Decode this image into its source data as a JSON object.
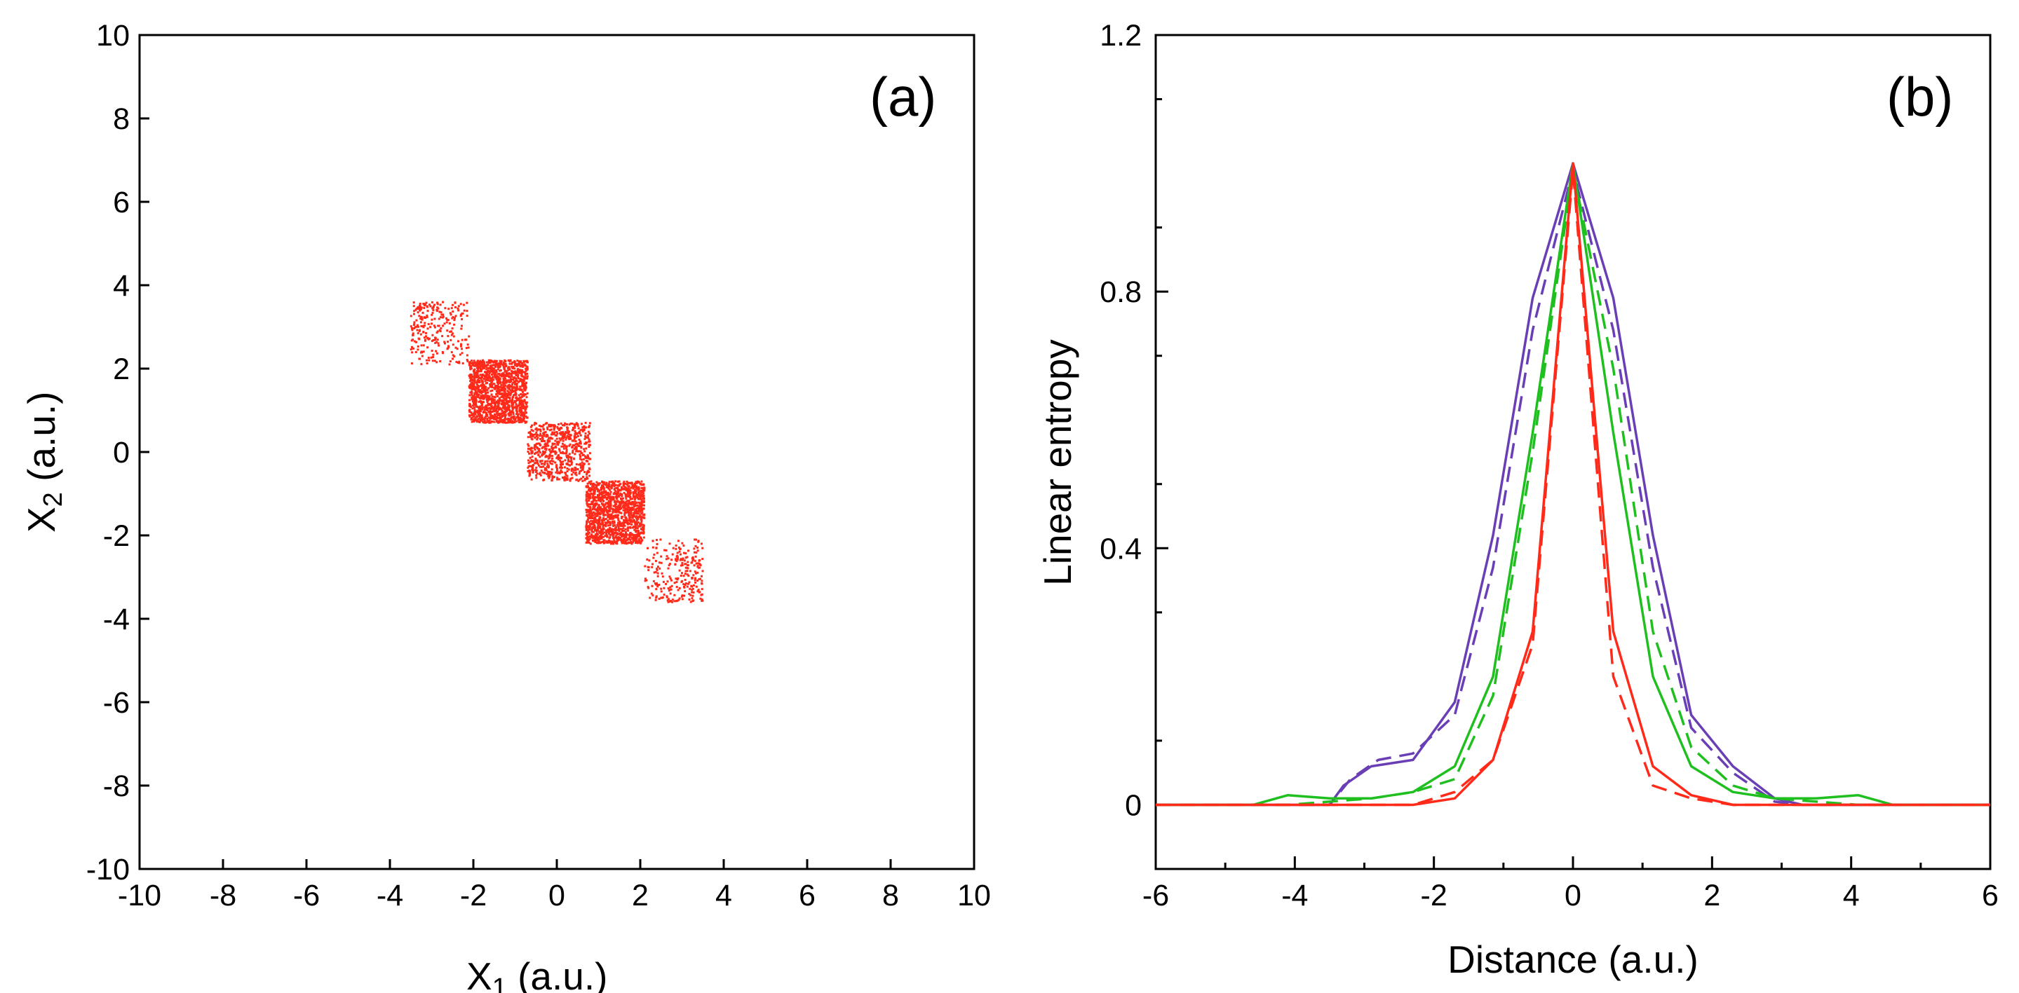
{
  "chart_data": [
    {
      "type": "scatter",
      "panel_label": "(a)",
      "xlabel_main": "X",
      "xlabel_sub": "1",
      "xlabel_unit": " (a.u.)",
      "ylabel_main": "X",
      "ylabel_sub": "2",
      "ylabel_unit": " (a.u.)",
      "xlim": [
        -10,
        10
      ],
      "ylim": [
        -10,
        10
      ],
      "xticks": [
        -10,
        -8,
        -6,
        -4,
        -2,
        0,
        2,
        4,
        6,
        8,
        10
      ],
      "yticks": [
        -10,
        -8,
        -6,
        -4,
        -2,
        0,
        2,
        4,
        6,
        8,
        10
      ],
      "point_color": "#ff2a1a",
      "clusters": [
        {
          "x_range": [
            -3.5,
            -2.1
          ],
          "y_range": [
            2.1,
            3.6
          ],
          "points": 260
        },
        {
          "x_range": [
            -2.1,
            -0.7
          ],
          "y_range": [
            0.7,
            2.2
          ],
          "points": 1400
        },
        {
          "x_range": [
            -0.7,
            0.8
          ],
          "y_range": [
            -0.7,
            0.7
          ],
          "points": 650
        },
        {
          "x_range": [
            0.7,
            2.1
          ],
          "y_range": [
            -2.2,
            -0.7
          ],
          "points": 1400
        },
        {
          "x_range": [
            2.1,
            3.5
          ],
          "y_range": [
            -3.6,
            -2.1
          ],
          "points": 260
        }
      ]
    },
    {
      "type": "line",
      "panel_label": "(b)",
      "xlabel": "Distance (a.u.)",
      "ylabel": "Linear entropy",
      "xlim": [
        -6,
        6
      ],
      "ylim": [
        -0.1,
        1.2
      ],
      "xticks": [
        -6,
        -4,
        -2,
        0,
        2,
        4,
        6
      ],
      "yticks": [
        0,
        0.4,
        0.8,
        1.2
      ],
      "ytick_labels": [
        "0",
        "0.4",
        "0.8",
        "1.2"
      ],
      "series": [
        {
          "name": "purple solid",
          "color": "#6a3fb5",
          "style": "solid",
          "x": [
            -6,
            -3.5,
            -3.3,
            -2.9,
            -2.3,
            -1.7,
            -1.15,
            -0.58,
            0,
            0.58,
            1.15,
            1.7,
            2.3,
            2.9,
            3.3,
            6
          ],
          "y": [
            0,
            0,
            0.03,
            0.06,
            0.07,
            0.16,
            0.42,
            0.79,
            1.0,
            0.79,
            0.42,
            0.14,
            0.06,
            0.01,
            0,
            0
          ]
        },
        {
          "name": "purple dashed",
          "color": "#6a3fb5",
          "style": "dashed",
          "x": [
            -6,
            -3.5,
            -3.2,
            -2.8,
            -2.3,
            -1.7,
            -1.15,
            -0.58,
            0,
            0.58,
            1.15,
            1.7,
            2.3,
            2.9,
            3.3,
            6
          ],
          "y": [
            0,
            0,
            0.04,
            0.07,
            0.08,
            0.14,
            0.37,
            0.74,
            0.99,
            0.74,
            0.37,
            0.12,
            0.05,
            0.005,
            0,
            0
          ]
        },
        {
          "name": "green solid",
          "color": "#1fbf1f",
          "style": "solid",
          "x": [
            -6,
            -4.6,
            -4.1,
            -3.5,
            -2.9,
            -2.3,
            -1.7,
            -1.15,
            -0.58,
            0,
            0.58,
            1.15,
            1.7,
            2.3,
            2.9,
            3.5,
            4.1,
            4.6,
            6
          ],
          "y": [
            0,
            0,
            0.015,
            0.01,
            0.01,
            0.02,
            0.06,
            0.2,
            0.58,
            1.0,
            0.58,
            0.2,
            0.06,
            0.02,
            0.01,
            0.01,
            0.015,
            0,
            0
          ]
        },
        {
          "name": "green dashed",
          "color": "#1fbf1f",
          "style": "dashed",
          "x": [
            -6,
            -4.1,
            -3.5,
            -2.9,
            -2.3,
            -1.7,
            -1.15,
            -0.58,
            0,
            0.58,
            1.15,
            1.7,
            2.3,
            2.9,
            3.5,
            4.1,
            6
          ],
          "y": [
            0,
            0,
            0.005,
            0.01,
            0.02,
            0.04,
            0.17,
            0.55,
            0.99,
            0.68,
            0.27,
            0.09,
            0.03,
            0.01,
            0.005,
            0,
            0
          ]
        },
        {
          "name": "red solid",
          "color": "#ff2a1a",
          "style": "solid",
          "x": [
            -6,
            -2.3,
            -1.7,
            -1.15,
            -0.58,
            0,
            0.58,
            1.15,
            1.7,
            2.3,
            6
          ],
          "y": [
            0,
            0,
            0.01,
            0.07,
            0.27,
            1.0,
            0.27,
            0.06,
            0.015,
            0,
            0
          ]
        },
        {
          "name": "red dashed",
          "color": "#ff2a1a",
          "style": "dashed",
          "x": [
            -6,
            -2.3,
            -1.7,
            -1.15,
            -0.58,
            0,
            0.58,
            1.15,
            1.7,
            2.3,
            6
          ],
          "y": [
            0,
            0,
            0.02,
            0.07,
            0.25,
            0.99,
            0.2,
            0.03,
            0.01,
            0,
            0
          ]
        }
      ]
    }
  ]
}
